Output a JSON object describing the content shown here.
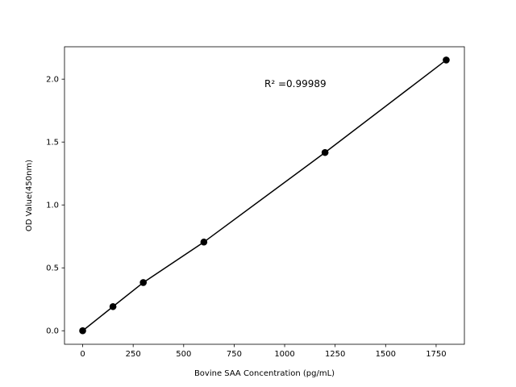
{
  "chart_data": {
    "type": "line",
    "title": "",
    "xlabel": "Bovine SAA Concentration (pg/mL)",
    "ylabel": "OD Value(450nm)",
    "xlim": [
      -90,
      1890
    ],
    "ylim": [
      -0.1075,
      2.2575
    ],
    "xticks": [
      0,
      250,
      500,
      750,
      1000,
      1250,
      1500,
      1750
    ],
    "xtick_labels": [
      "0",
      "250",
      "500",
      "750",
      "1000",
      "1250",
      "1500",
      "1750"
    ],
    "yticks": [
      0.0,
      0.5,
      1.0,
      1.5,
      2.0
    ],
    "ytick_labels": [
      "0.0",
      "0.5",
      "1.0",
      "1.5",
      "2.0"
    ],
    "grid": false,
    "series": [
      {
        "x": [
          0,
          150,
          300,
          600,
          1200,
          1800
        ],
        "y": [
          0.0,
          0.192,
          0.383,
          0.705,
          1.417,
          2.152
        ],
        "color": "#000000",
        "marker": "circle"
      }
    ],
    "annotations": [
      {
        "text": "R² =0.99989",
        "x": 900,
        "y": 1.97
      }
    ]
  }
}
